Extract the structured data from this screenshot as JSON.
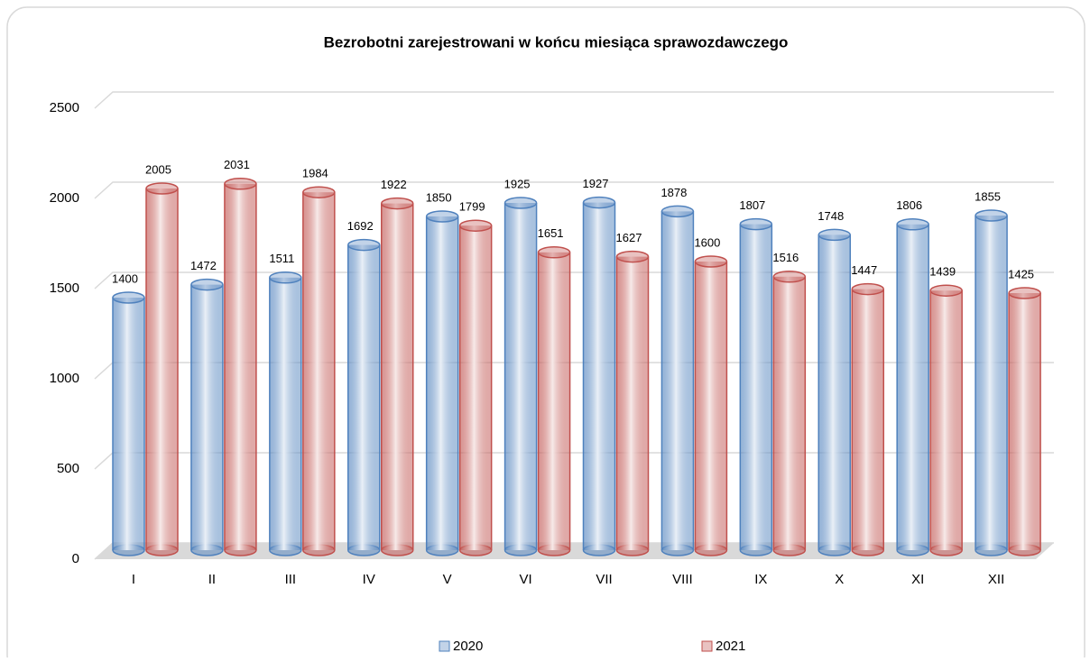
{
  "chart_data": {
    "type": "bar",
    "title": "Bezrobotni zarejestrowani w końcu miesiąca sprawozdawczego",
    "categories": [
      "I",
      "II",
      "III",
      "IV",
      "V",
      "VI",
      "VII",
      "VIII",
      "IX",
      "X",
      "XI",
      "XII"
    ],
    "series": [
      {
        "name": "2020",
        "color": "#4f81bd",
        "values": [
          1400,
          1472,
          1511,
          1692,
          1850,
          1925,
          1927,
          1878,
          1807,
          1748,
          1806,
          1855
        ]
      },
      {
        "name": "2021",
        "color": "#c0504d",
        "values": [
          2005,
          2031,
          1984,
          1922,
          1799,
          1651,
          1627,
          1600,
          1516,
          1447,
          1439,
          1425
        ]
      }
    ],
    "ylim": [
      0,
      2500
    ],
    "yticks": [
      0,
      500,
      1000,
      1500,
      2000,
      2500
    ],
    "grid": true,
    "legend": "bottom"
  }
}
